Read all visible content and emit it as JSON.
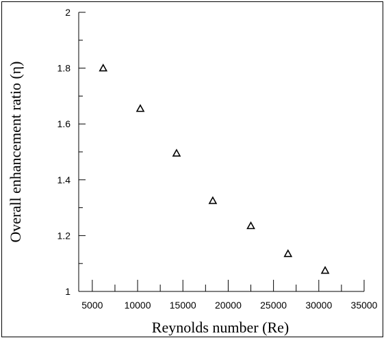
{
  "chart_data": {
    "type": "scatter",
    "title": "",
    "xlabel": "Reynolds number (Re)",
    "ylabel": "Overall enhancement ratio (η)",
    "xlim": [
      3500,
      35000
    ],
    "ylim": [
      1,
      2
    ],
    "xticks": [
      5000,
      10000,
      15000,
      20000,
      25000,
      30000,
      35000
    ],
    "yticks": [
      1,
      1.2,
      1.4,
      1.6,
      1.8,
      2
    ],
    "x_tick_labels": [
      "5000",
      "10000",
      "15000",
      "20000",
      "25000",
      "30000",
      "35000"
    ],
    "y_tick_labels": [
      "1",
      "1.2",
      "1.4",
      "1.6",
      "1.8",
      "2"
    ],
    "marker": "open-triangle",
    "series": [
      {
        "x": [
          6200,
          10300,
          14300,
          18300,
          22500,
          26600,
          30700
        ],
        "y": [
          1.8,
          1.655,
          1.495,
          1.325,
          1.235,
          1.135,
          1.075
        ]
      }
    ],
    "grid": false,
    "legend": "none"
  }
}
